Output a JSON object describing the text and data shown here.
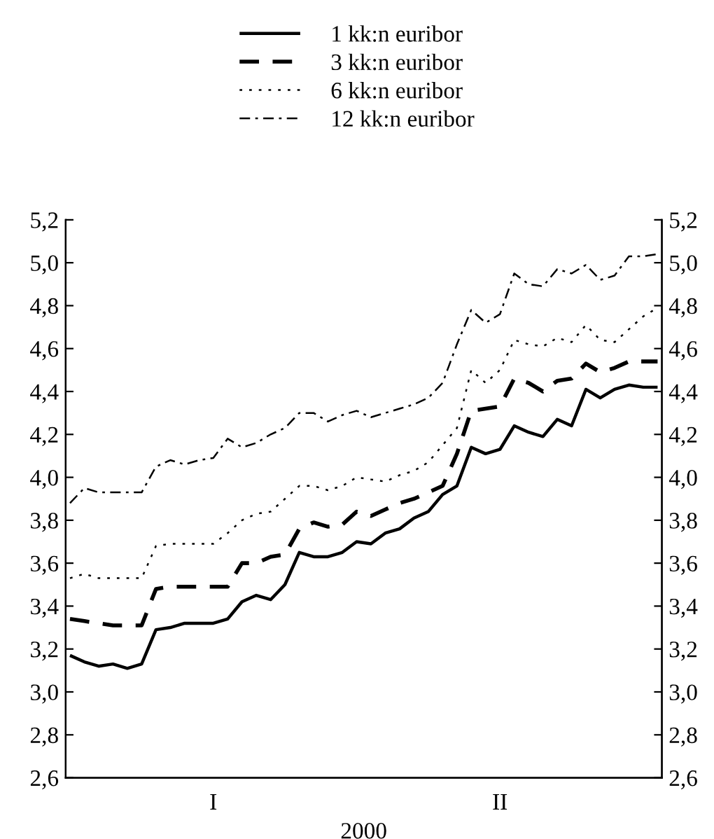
{
  "chart_data": {
    "type": "line",
    "xlabel": "2000",
    "legend": "top",
    "grid": false,
    "marker": "none",
    "categories": [
      null,
      null,
      null,
      null,
      null,
      null,
      null,
      null,
      null,
      null,
      "I",
      null,
      null,
      null,
      null,
      null,
      null,
      null,
      null,
      null,
      null,
      null,
      null,
      null,
      null,
      null,
      null,
      null,
      null,
      null,
      "II",
      null,
      null,
      null,
      null,
      null,
      null,
      null,
      null,
      null,
      null,
      null
    ],
    "ylim": [
      2.6,
      5.2
    ],
    "yticks": [
      {
        "value": 2.6,
        "label": "2,6"
      },
      {
        "value": 2.8,
        "label": "2,8"
      },
      {
        "value": 3.0,
        "label": "3,0"
      },
      {
        "value": 3.2,
        "label": "3,2"
      },
      {
        "value": 3.4,
        "label": "3,4"
      },
      {
        "value": 3.6,
        "label": "3,6"
      },
      {
        "value": 3.8,
        "label": "3,8"
      },
      {
        "value": 4.0,
        "label": "4,0"
      },
      {
        "value": 4.2,
        "label": "4,2"
      },
      {
        "value": 4.4,
        "label": "4,4"
      },
      {
        "value": 4.6,
        "label": "4,6"
      },
      {
        "value": 4.8,
        "label": "4,8"
      },
      {
        "value": 5.0,
        "label": "5,0"
      },
      {
        "value": 5.2,
        "label": "5,2"
      }
    ],
    "y2lim": [
      2.6,
      5.2
    ],
    "y2ticks": [
      {
        "value": 2.6,
        "label": "2,6"
      },
      {
        "value": 2.8,
        "label": "2,8"
      },
      {
        "value": 3.0,
        "label": "3,0"
      },
      {
        "value": 3.2,
        "label": "3,2"
      },
      {
        "value": 3.4,
        "label": "3,4"
      },
      {
        "value": 3.6,
        "label": "3,6"
      },
      {
        "value": 3.8,
        "label": "3,8"
      },
      {
        "value": 4.0,
        "label": "4,0"
      },
      {
        "value": 4.2,
        "label": "4,2"
      },
      {
        "value": 4.4,
        "label": "4,4"
      },
      {
        "value": 4.6,
        "label": "4,6"
      },
      {
        "value": 4.8,
        "label": "4,8"
      },
      {
        "value": 5.0,
        "label": "5,0"
      },
      {
        "value": 5.2,
        "label": "5,2"
      }
    ],
    "series": [
      {
        "name": "1 kk:n euribor",
        "color": "#000000",
        "line_style": "solid",
        "values": [
          3.17,
          3.14,
          3.12,
          3.13,
          3.11,
          3.13,
          3.29,
          3.3,
          3.32,
          3.32,
          3.32,
          3.34,
          3.42,
          3.45,
          3.43,
          3.5,
          3.65,
          3.63,
          3.63,
          3.65,
          3.7,
          3.69,
          3.74,
          3.76,
          3.81,
          3.84,
          3.92,
          3.96,
          4.14,
          4.11,
          4.13,
          4.24,
          4.21,
          4.19,
          4.27,
          4.24,
          4.41,
          4.37,
          4.41,
          4.43,
          4.42,
          4.42
        ]
      },
      {
        "name": "3 kk:n euribor",
        "color": "#000000",
        "line_style": "dashed",
        "values": [
          3.34,
          3.33,
          3.32,
          3.31,
          3.31,
          3.31,
          3.48,
          3.49,
          3.49,
          3.49,
          3.49,
          3.49,
          3.6,
          3.6,
          3.63,
          3.64,
          3.76,
          3.79,
          3.77,
          3.78,
          3.84,
          3.82,
          3.85,
          3.88,
          3.9,
          3.93,
          3.96,
          4.11,
          4.31,
          4.32,
          4.33,
          4.46,
          4.44,
          4.4,
          4.45,
          4.46,
          4.53,
          4.49,
          4.51,
          4.54,
          4.54,
          4.54
        ]
      },
      {
        "name": "6 kk:n euribor",
        "color": "#000000",
        "line_style": "dotted",
        "values": [
          3.53,
          3.55,
          3.53,
          3.53,
          3.53,
          3.53,
          3.68,
          3.69,
          3.69,
          3.69,
          3.69,
          3.74,
          3.8,
          3.83,
          3.84,
          3.9,
          3.96,
          3.96,
          3.94,
          3.96,
          4.0,
          3.99,
          3.98,
          4.01,
          4.03,
          4.07,
          4.15,
          4.23,
          4.5,
          4.44,
          4.5,
          4.64,
          4.62,
          4.61,
          4.65,
          4.63,
          4.71,
          4.64,
          4.63,
          4.69,
          4.75,
          4.79
        ]
      },
      {
        "name": "12 kk:n euribor",
        "color": "#000000",
        "line_style": "dashdot",
        "values": [
          3.88,
          3.95,
          3.93,
          3.93,
          3.93,
          3.93,
          4.05,
          4.08,
          4.06,
          4.08,
          4.09,
          4.18,
          4.14,
          4.16,
          4.2,
          4.23,
          4.3,
          4.3,
          4.26,
          4.29,
          4.31,
          4.28,
          4.3,
          4.32,
          4.34,
          4.37,
          4.44,
          4.62,
          4.78,
          4.72,
          4.76,
          4.95,
          4.9,
          4.89,
          4.97,
          4.95,
          4.99,
          4.92,
          4.94,
          5.03,
          5.03,
          5.04
        ]
      }
    ]
  }
}
